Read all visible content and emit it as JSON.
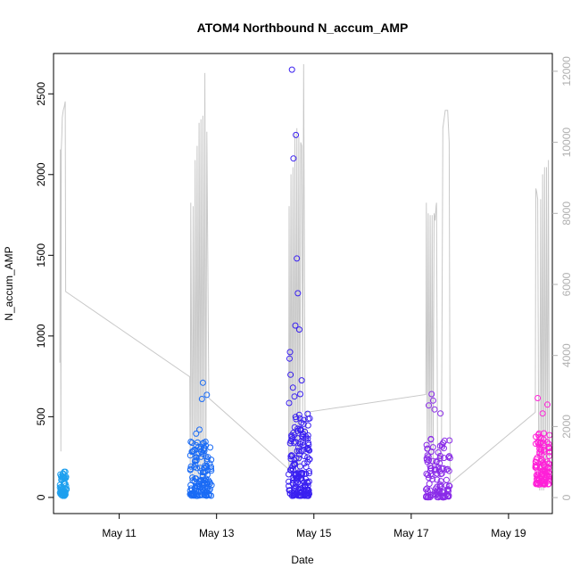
{
  "chart_data": {
    "type": "scatter",
    "title": "ATOM4 Northbound N_accum_AMP",
    "xlabel": "Date",
    "ylabel": "N_accum_AMP",
    "x_ticks": [
      "May 11",
      "May 13",
      "May 15",
      "May 17",
      "May 19"
    ],
    "x_tick_days": [
      11,
      13,
      15,
      17,
      19
    ],
    "xlim_days": [
      9.65,
      19.9
    ],
    "ylim": [
      -100,
      2750
    ],
    "y_ticks": [
      "0",
      "500",
      "1000",
      "1500",
      "2000",
      "2500"
    ],
    "y_tick_values": [
      0,
      500,
      1000,
      1500,
      2000,
      2500
    ],
    "y2_ticks": [
      "0",
      "2000",
      "4000",
      "6000",
      "8000",
      "10000",
      "12000"
    ],
    "y2_tick_values": [
      0,
      2000,
      4000,
      6000,
      8000,
      10000,
      12000
    ],
    "y2lim": [
      -450,
      12500
    ],
    "grid": false,
    "point_colors": [
      "#1ea0ef",
      "#1a6bf5",
      "#3a20f0",
      "#8a2be8",
      "#ff20d8"
    ],
    "line_color": "#c8c8c8",
    "series": [
      {
        "clusters": [
          {
            "day_start": 9.78,
            "day_end": 9.92,
            "y_min": 10,
            "y_max": 160,
            "n": 60
          },
          {
            "day_start": 12.45,
            "day_end": 12.9,
            "y_min": 10,
            "y_max": 350,
            "n": 140
          },
          {
            "day_start": 14.48,
            "day_end": 14.92,
            "y_min": 10,
            "y_max": 520,
            "n": 170
          },
          {
            "day_start": 17.3,
            "day_end": 17.8,
            "y_min": 0,
            "y_max": 380,
            "n": 110
          },
          {
            "day_start": 19.55,
            "day_end": 19.85,
            "y_min": 80,
            "y_max": 420,
            "n": 110
          }
        ],
        "outliers": [
          [
            12.72,
            710
          ],
          [
            12.7,
            610
          ],
          [
            12.8,
            635
          ],
          [
            12.65,
            420
          ],
          [
            12.58,
            395
          ],
          [
            14.55,
            2650
          ],
          [
            14.63,
            2245
          ],
          [
            14.58,
            2100
          ],
          [
            14.65,
            1480
          ],
          [
            14.67,
            1265
          ],
          [
            14.62,
            1065
          ],
          [
            14.7,
            1040
          ],
          [
            14.51,
            900
          ],
          [
            14.5,
            860
          ],
          [
            14.52,
            760
          ],
          [
            14.57,
            680
          ],
          [
            14.6,
            625
          ],
          [
            14.75,
            725
          ],
          [
            14.72,
            640
          ],
          [
            14.49,
            585
          ],
          [
            17.42,
            640
          ],
          [
            17.45,
            600
          ],
          [
            17.36,
            570
          ],
          [
            17.48,
            545
          ],
          [
            17.6,
            520
          ],
          [
            19.6,
            615
          ],
          [
            19.8,
            575
          ],
          [
            19.7,
            520
          ]
        ]
      },
      {
        "type": "line",
        "axis": "right",
        "points": [
          [
            9.78,
            3800
          ],
          [
            9.79,
            9800
          ],
          [
            9.8,
            1300
          ],
          [
            9.81,
            9800
          ],
          [
            9.82,
            10200
          ],
          [
            9.83,
            10700
          ],
          [
            9.85,
            10900
          ],
          [
            9.87,
            11000
          ],
          [
            9.89,
            11150
          ],
          [
            9.9,
            5800
          ],
          [
            12.45,
            3400
          ],
          [
            12.46,
            400
          ],
          [
            12.47,
            8300
          ],
          [
            12.5,
            500
          ],
          [
            12.52,
            8200
          ],
          [
            12.54,
            400
          ],
          [
            12.56,
            9500
          ],
          [
            12.58,
            500
          ],
          [
            12.6,
            9900
          ],
          [
            12.62,
            400
          ],
          [
            12.64,
            10550
          ],
          [
            12.66,
            500
          ],
          [
            12.68,
            10650
          ],
          [
            12.7,
            400
          ],
          [
            12.72,
            10750
          ],
          [
            12.74,
            500
          ],
          [
            12.76,
            11950
          ],
          [
            12.78,
            400
          ],
          [
            12.8,
            10300
          ],
          [
            12.84,
            2800
          ],
          [
            14.48,
            800
          ],
          [
            14.49,
            8200
          ],
          [
            14.51,
            700
          ],
          [
            14.53,
            9100
          ],
          [
            14.55,
            800
          ],
          [
            14.57,
            9300
          ],
          [
            14.59,
            700
          ],
          [
            14.61,
            10250
          ],
          [
            14.63,
            800
          ],
          [
            14.65,
            10400
          ],
          [
            14.67,
            700
          ],
          [
            14.69,
            10150
          ],
          [
            14.71,
            800
          ],
          [
            14.73,
            10000
          ],
          [
            14.75,
            9900
          ],
          [
            14.77,
            2400
          ],
          [
            14.79,
            12200
          ],
          [
            14.82,
            1200
          ],
          [
            14.85,
            2400
          ],
          [
            17.3,
            2900
          ],
          [
            17.31,
            8300
          ],
          [
            17.33,
            1200
          ],
          [
            17.35,
            8000
          ],
          [
            17.37,
            1000
          ],
          [
            17.39,
            7950
          ],
          [
            17.41,
            1100
          ],
          [
            17.43,
            7950
          ],
          [
            17.45,
            800
          ],
          [
            17.47,
            8000
          ],
          [
            17.49,
            7800
          ],
          [
            17.51,
            8200
          ],
          [
            17.52,
            8300
          ],
          [
            17.54,
            1500
          ],
          [
            17.56,
            900
          ],
          [
            17.59,
            1200
          ],
          [
            17.62,
            1000
          ],
          [
            17.65,
            10400
          ],
          [
            17.7,
            10900
          ],
          [
            17.75,
            10900
          ],
          [
            17.78,
            10000
          ],
          [
            17.8,
            400
          ],
          [
            19.55,
            2400
          ],
          [
            19.56,
            8700
          ],
          [
            19.58,
            8600
          ],
          [
            19.6,
            8400
          ],
          [
            19.62,
            1200
          ],
          [
            19.64,
            200
          ],
          [
            19.66,
            8400
          ],
          [
            19.68,
            200
          ],
          [
            19.7,
            9100
          ],
          [
            19.72,
            200
          ],
          [
            19.74,
            9300
          ],
          [
            19.76,
            300
          ],
          [
            19.78,
            9300
          ],
          [
            19.8,
            300
          ],
          [
            19.82,
            9500
          ],
          [
            19.84,
            600
          ]
        ]
      }
    ]
  }
}
